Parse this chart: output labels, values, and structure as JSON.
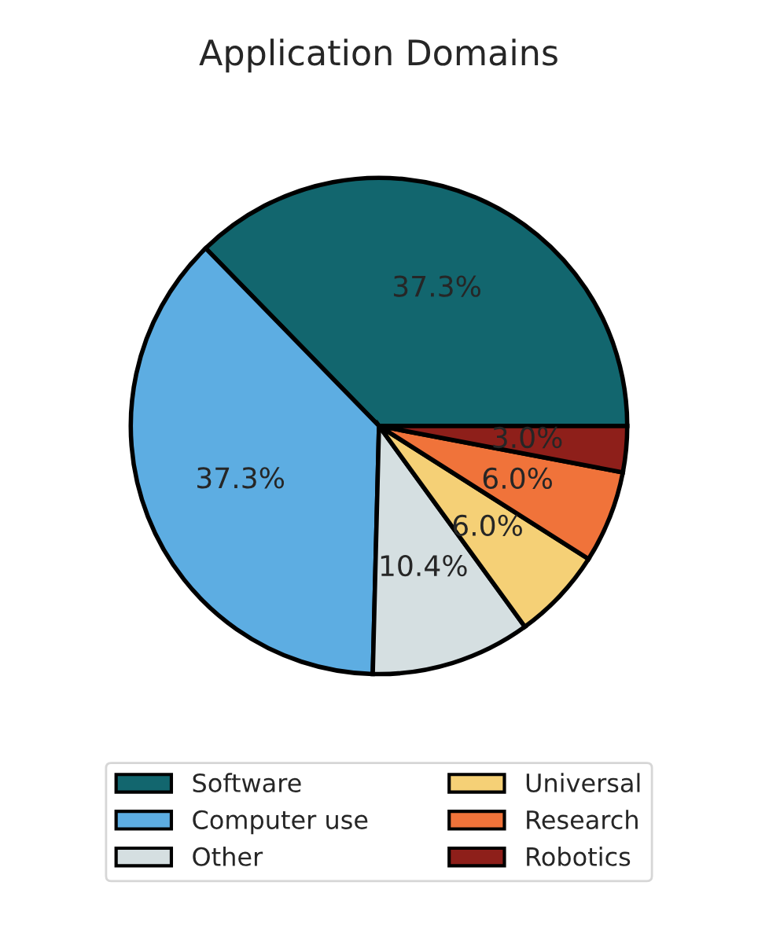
{
  "chart_data": {
    "type": "pie",
    "title": "Application Domains",
    "categories": [
      "Software",
      "Computer use",
      "Other",
      "Universal",
      "Research",
      "Robotics"
    ],
    "values": [
      37.3,
      37.3,
      10.4,
      6.0,
      6.0,
      3.0
    ],
    "value_labels": [
      "37.3%",
      "37.3%",
      "10.4%",
      "6.0%",
      "6.0%",
      "3.0%"
    ],
    "colors": [
      "#12666e",
      "#5dade2",
      "#d5dfe1",
      "#f5d076",
      "#f0733a",
      "#8e1f1a"
    ],
    "legend": "bottom"
  }
}
